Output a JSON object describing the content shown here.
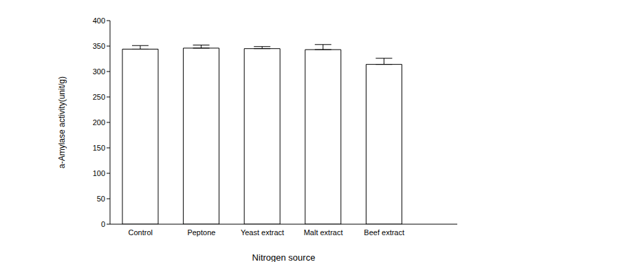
{
  "chart_data": {
    "type": "bar",
    "x_label": "Nitrogen source",
    "y_label": "a-Amylase activity(unit/g)",
    "categories": [
      "Control",
      "Peptone",
      "Yeast extract",
      "Malt extract",
      "Beef extract"
    ],
    "values": [
      344,
      346,
      345,
      343,
      314
    ],
    "errors": [
      7,
      6,
      4,
      10,
      12
    ],
    "color": "#ffffff",
    "ylim": [
      0,
      400
    ],
    "yticks": [
      0,
      50,
      100,
      150,
      200,
      250,
      300,
      350,
      400
    ],
    "grid": false
  }
}
